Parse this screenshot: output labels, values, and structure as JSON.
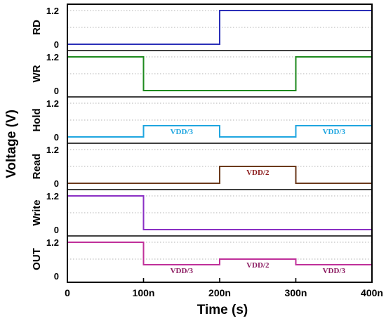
{
  "chart_data": {
    "type": "line",
    "title": "",
    "xlabel": "Time (s)",
    "ylabel": "Voltage (V)",
    "xlim": [
      0,
      400
    ],
    "x_unit": "ns",
    "x_ticks": [
      "0",
      "100n",
      "200n",
      "300n",
      "400n"
    ],
    "grid": true,
    "legend": "none",
    "series": [
      {
        "name": "RD",
        "color": "#2b2fb8",
        "ytick_labels": [
          "1.2",
          "0"
        ],
        "x": [
          0,
          200,
          200,
          400
        ],
        "y": [
          0,
          0,
          1.2,
          1.2
        ],
        "annotations": []
      },
      {
        "name": "WR",
        "color": "#1e8a1e",
        "ytick_labels": [
          "1.2",
          "0"
        ],
        "x": [
          0,
          100,
          100,
          300,
          300,
          400
        ],
        "y": [
          1.2,
          1.2,
          0,
          0,
          1.2,
          1.2
        ],
        "annotations": []
      },
      {
        "name": "Hold",
        "color": "#1fa6e0",
        "ytick_labels": [
          "1.2",
          "0"
        ],
        "x": [
          0,
          100,
          100,
          200,
          200,
          300,
          300,
          400
        ],
        "y": [
          0,
          0,
          0.4,
          0.4,
          0,
          0,
          0.4,
          0.4
        ],
        "annotations": [
          {
            "text": "VDD/3",
            "x": 150,
            "y": 0.4
          },
          {
            "text": "VDD/3",
            "x": 350,
            "y": 0.4
          }
        ]
      },
      {
        "name": "Read",
        "color": "#6b3a1c",
        "ytick_labels": [
          "1.2",
          "0"
        ],
        "x": [
          0,
          200,
          200,
          300,
          300,
          400
        ],
        "y": [
          0,
          0,
          0.6,
          0.6,
          0,
          0
        ],
        "annotations": [
          {
            "text": "VDD/2",
            "x": 250,
            "y": 0.6
          }
        ],
        "annotation_color": "#8b1a1a"
      },
      {
        "name": "Write",
        "color": "#8a2fc4",
        "ytick_labels": [
          "1.2",
          "0"
        ],
        "x": [
          0,
          100,
          100,
          400
        ],
        "y": [
          1.2,
          1.2,
          0,
          0
        ],
        "annotations": []
      },
      {
        "name": "OUT",
        "color": "#c0309a",
        "ytick_labels": [
          "1.2",
          "0"
        ],
        "x": [
          0,
          100,
          100,
          200,
          200,
          300,
          300,
          400
        ],
        "y": [
          1.2,
          1.2,
          0.4,
          0.4,
          0.6,
          0.6,
          0.4,
          0.4
        ],
        "annotations": [
          {
            "text": "VDD/3",
            "x": 150,
            "y": 0.4
          },
          {
            "text": "VDD/2",
            "x": 250,
            "y": 0.6
          },
          {
            "text": "VDD/3",
            "x": 350,
            "y": 0.4
          }
        ],
        "annotation_color": "#8b1a60"
      }
    ]
  }
}
